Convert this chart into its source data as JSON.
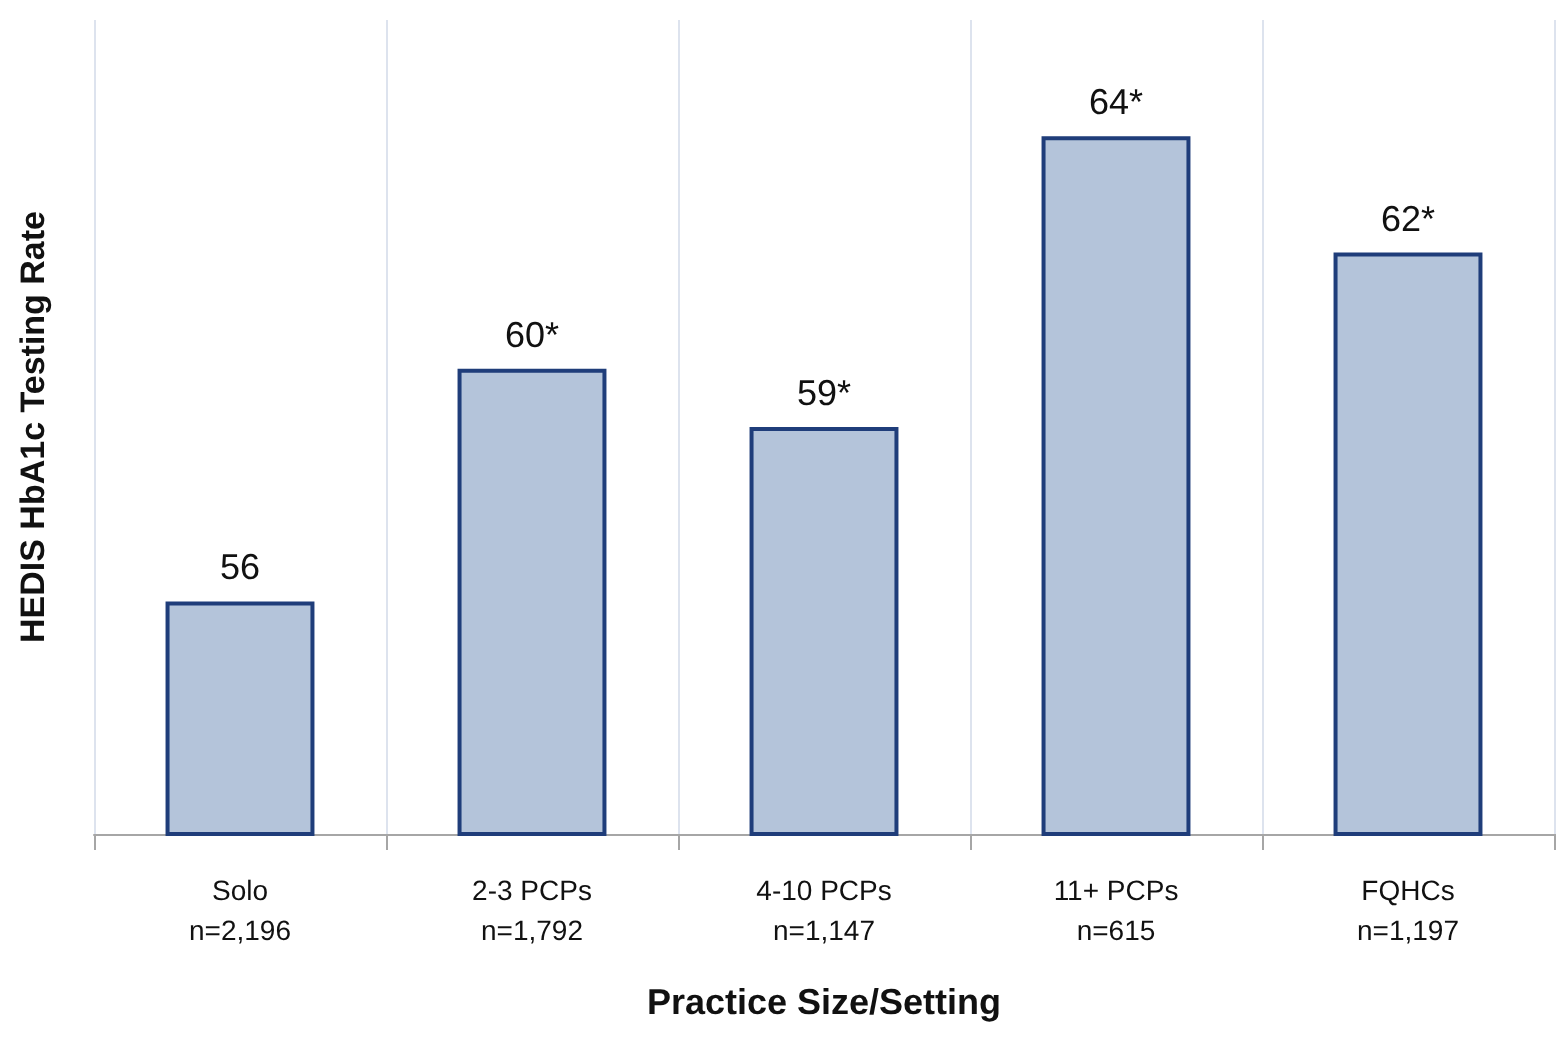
{
  "chart_data": {
    "type": "bar",
    "xlabel": "Practice Size/Setting",
    "ylabel": "HEDIS HbA1c Testing Rate",
    "categories": [
      "Solo\nn=2,196",
      "2-3 PCPs\nn=1,792",
      "4-10 PCPs\nn=1,147",
      "11+ PCPs\nn=615",
      "FQHCs\nn=1,197"
    ],
    "values": [
      56,
      60,
      59,
      64,
      62
    ],
    "value_labels": [
      "56",
      "60*",
      "59*",
      "64*",
      "62*"
    ],
    "color": "#b4c4da",
    "ylim": [
      52,
      66
    ],
    "tick_labels": "x",
    "grid": "x"
  }
}
